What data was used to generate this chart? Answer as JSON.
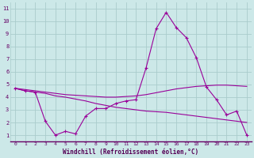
{
  "xlabel": "Windchill (Refroidissement éolien,°C)",
  "bg_color": "#cce8e8",
  "grid_color": "#aacccc",
  "line_color": "#990099",
  "xlim": [
    -0.5,
    23.5
  ],
  "ylim": [
    0.5,
    11.5
  ],
  "xtick_labels": [
    "0",
    "1",
    "2",
    "3",
    "4",
    "5",
    "6",
    "7",
    "8",
    "9",
    "10",
    "11",
    "12",
    "13",
    "14",
    "15",
    "16",
    "17",
    "18",
    "19",
    "20",
    "21",
    "22",
    "23"
  ],
  "ytick_labels": [
    "1",
    "2",
    "3",
    "4",
    "5",
    "6",
    "7",
    "8",
    "9",
    "10",
    "11"
  ],
  "line1_x": [
    0,
    1,
    2,
    3,
    4,
    5,
    6,
    7,
    8,
    9,
    10,
    11,
    12,
    13,
    14,
    15,
    16,
    17,
    18,
    19,
    20,
    21,
    22,
    23
  ],
  "line1_y": [
    4.7,
    4.5,
    4.4,
    2.1,
    1.0,
    1.3,
    1.1,
    2.5,
    3.1,
    3.1,
    3.5,
    3.7,
    3.8,
    6.3,
    9.4,
    10.7,
    9.5,
    8.7,
    7.1,
    4.8,
    3.8,
    2.6,
    2.9,
    1.0
  ],
  "line2_x": [
    0,
    1,
    2,
    3,
    4,
    5,
    6,
    7,
    8,
    9,
    10,
    11,
    12,
    13,
    14,
    15,
    16,
    17,
    18,
    19,
    20,
    21,
    22,
    23
  ],
  "line2_y": [
    4.7,
    4.6,
    4.5,
    4.4,
    4.3,
    4.2,
    4.15,
    4.1,
    4.05,
    4.0,
    4.0,
    4.05,
    4.1,
    4.2,
    4.35,
    4.5,
    4.65,
    4.75,
    4.85,
    4.9,
    4.95,
    4.95,
    4.9,
    4.85
  ],
  "line3_x": [
    0,
    1,
    2,
    3,
    4,
    5,
    6,
    7,
    8,
    9,
    10,
    11,
    12,
    13,
    14,
    15,
    16,
    17,
    18,
    19,
    20,
    21,
    22,
    23
  ],
  "line3_y": [
    4.7,
    4.5,
    4.4,
    4.3,
    4.1,
    4.0,
    3.85,
    3.7,
    3.5,
    3.35,
    3.2,
    3.1,
    3.0,
    2.9,
    2.85,
    2.8,
    2.7,
    2.6,
    2.5,
    2.4,
    2.3,
    2.2,
    2.1,
    2.0
  ]
}
